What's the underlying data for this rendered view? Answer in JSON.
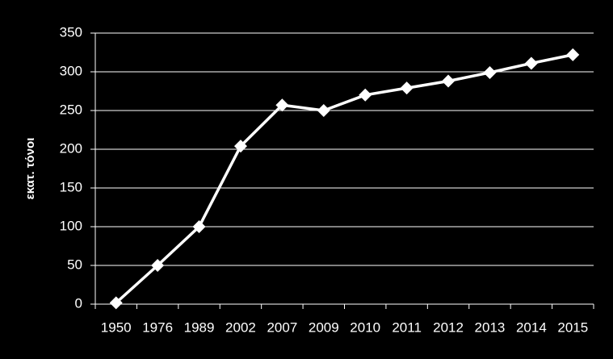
{
  "chart_data": {
    "type": "line",
    "y_label": "εκατ. τόνοι",
    "categories": [
      "1950",
      "1976",
      "1989",
      "2002",
      "2007",
      "2009",
      "2010",
      "2011",
      "2012",
      "2013",
      "2014",
      "2015"
    ],
    "values": [
      1.7,
      50,
      100,
      204,
      257,
      250,
      270,
      279,
      288,
      299,
      311,
      322
    ],
    "color": "#ffffff",
    "background": "#000000",
    "ylim": [
      0,
      350
    ],
    "yticks": [
      0,
      50,
      100,
      150,
      200,
      250,
      300,
      350
    ],
    "grid": true
  }
}
